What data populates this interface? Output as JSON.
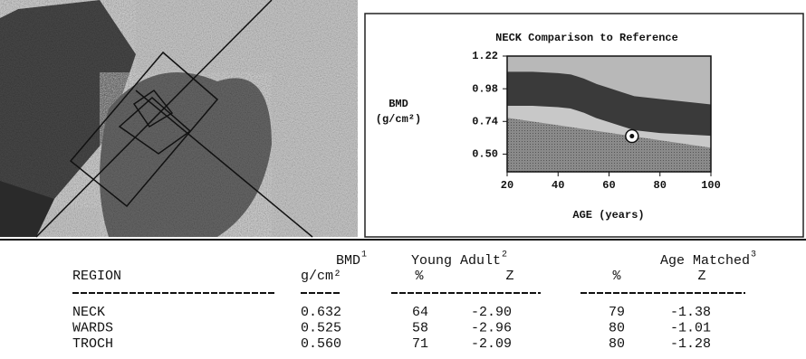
{
  "chart_data": {
    "type": "area",
    "title": "NECK Comparison to Reference",
    "ylabel": [
      "BMD",
      "(g/cm²)"
    ],
    "xlabel": "AGE (years)",
    "x": [
      20,
      30,
      40,
      45,
      50,
      55,
      60,
      65,
      70,
      80,
      90,
      100
    ],
    "series": [
      {
        "color": "#3a3a3a",
        "values": [
          1.1,
          1.1,
          1.09,
          1.08,
          1.05,
          1.01,
          0.98,
          0.95,
          0.92,
          0.9,
          0.88,
          0.86
        ]
      },
      {
        "color": "#3a3a3a",
        "values": [
          0.86,
          0.86,
          0.85,
          0.84,
          0.81,
          0.77,
          0.74,
          0.71,
          0.68,
          0.66,
          0.65,
          0.64
        ]
      }
    ],
    "point": {
      "x": 69,
      "y": 0.632
    },
    "xlim": [
      20,
      100
    ],
    "ylim": [
      0.37,
      1.22
    ],
    "xticks": [
      20,
      40,
      60,
      80,
      100
    ],
    "yticks": [
      {
        "value": 0.5,
        "label": "0.50"
      },
      0.74,
      0.98,
      1.22
    ]
  },
  "table": {
    "header": {
      "region": "REGION",
      "bmd": {
        "text": "BMD",
        "sup": "1",
        "unit": "g/cm²"
      },
      "young_adult": {
        "text": "Young Adult",
        "sup": "2"
      },
      "age_matched": {
        "text": "Age Matched",
        "sup": "3"
      },
      "subcols": [
        "%",
        "Z",
        "%",
        "Z"
      ]
    },
    "rows": [
      [
        "NECK",
        "0.632",
        "64",
        "-2.90",
        "79",
        "-1.38"
      ],
      [
        "WARDS",
        "0.525",
        "58",
        "-2.96",
        "80",
        "-1.01"
      ],
      [
        "TROCH",
        "0.560",
        "71",
        "-2.09",
        "80",
        "-1.28"
      ]
    ]
  }
}
